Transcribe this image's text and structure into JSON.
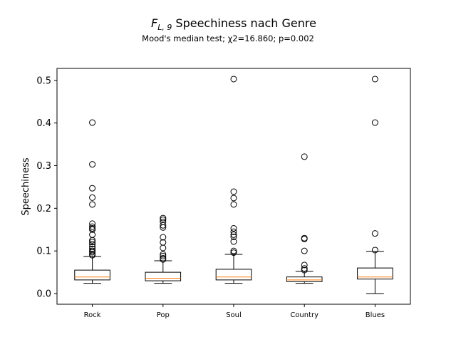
{
  "chart_data": {
    "type": "boxplot",
    "title_prefix": "F",
    "title_sub": "L, 9",
    "title_text": " Speechiness nach Genre",
    "subtitle": "Mood's median test; χ2=16.860; p=0.002",
    "xlabel": "",
    "ylabel": "Speechiness",
    "ylim": [
      -0.025,
      0.528
    ],
    "yticks": [
      0.0,
      0.1,
      0.2,
      0.3,
      0.4,
      0.5
    ],
    "ytick_labels": [
      "0.0",
      "0.1",
      "0.2",
      "0.3",
      "0.4",
      "0.5"
    ],
    "grid": false,
    "categories": [
      "Rock",
      "Pop",
      "Soul",
      "Country",
      "Blues"
    ],
    "boxes": [
      {
        "name": "Rock",
        "whisker_low": 0.024,
        "q1": 0.032,
        "median": 0.039,
        "q3": 0.055,
        "whisker_high": 0.087,
        "outliers": [
          0.09,
          0.093,
          0.097,
          0.1,
          0.105,
          0.11,
          0.116,
          0.121,
          0.125,
          0.138,
          0.15,
          0.153,
          0.157,
          0.164,
          0.209,
          0.225,
          0.247,
          0.303,
          0.401
        ]
      },
      {
        "name": "Pop",
        "whisker_low": 0.024,
        "q1": 0.03,
        "median": 0.036,
        "q3": 0.05,
        "whisker_high": 0.077,
        "outliers": [
          0.08,
          0.083,
          0.088,
          0.092,
          0.107,
          0.12,
          0.132,
          0.155,
          0.16,
          0.168,
          0.173,
          0.177
        ]
      },
      {
        "name": "Soul",
        "whisker_low": 0.024,
        "q1": 0.032,
        "median": 0.039,
        "q3": 0.057,
        "whisker_high": 0.092,
        "outliers": [
          0.096,
          0.1,
          0.122,
          0.133,
          0.138,
          0.145,
          0.153,
          0.209,
          0.224,
          0.239,
          0.503
        ]
      },
      {
        "name": "Country",
        "whisker_low": 0.024,
        "q1": 0.028,
        "median": 0.032,
        "q3": 0.039,
        "whisker_high": 0.052,
        "outliers": [
          0.055,
          0.059,
          0.067,
          0.1,
          0.128,
          0.13,
          0.321
        ]
      },
      {
        "name": "Blues",
        "whisker_low": 0.0,
        "q1": 0.034,
        "median": 0.039,
        "q3": 0.06,
        "whisker_high": 0.099,
        "outliers": [
          0.102,
          0.141,
          0.401,
          0.503
        ]
      }
    ],
    "colors": {
      "box": "#000000",
      "median": "#ff7f0e",
      "outlier": "#000000"
    }
  }
}
